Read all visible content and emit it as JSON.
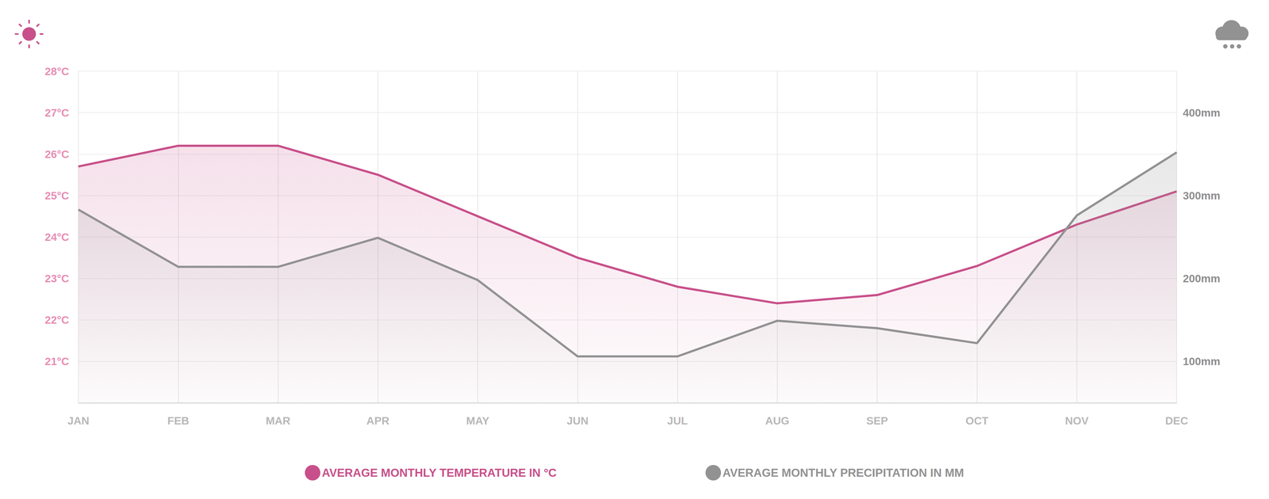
{
  "chart_data": {
    "type": "line",
    "categories": [
      "JAN",
      "FEB",
      "MAR",
      "APR",
      "MAY",
      "JUN",
      "JUL",
      "AUG",
      "SEP",
      "OCT",
      "NOV",
      "DEC"
    ],
    "series": [
      {
        "name": "AVERAGE MONTHLY TEMPERATURE IN °C",
        "color": "#c8508a",
        "values": [
          25.7,
          26.2,
          26.2,
          25.5,
          24.5,
          23.5,
          22.8,
          22.4,
          22.6,
          23.3,
          24.3,
          25.1
        ]
      },
      {
        "name": "AVERAGE MONTHLY PRECIPITATION IN MM",
        "color": "#929292",
        "axis": "y2",
        "values": [
          283,
          214,
          214,
          249,
          198,
          106,
          106,
          149,
          140,
          122,
          276,
          352
        ]
      }
    ],
    "ylim": [
      20,
      28
    ],
    "yticks": [
      {
        "value": 21,
        "label": "21°C"
      },
      {
        "value": 22,
        "label": "22°C"
      },
      {
        "value": 23,
        "label": "23°C"
      },
      {
        "value": 24,
        "label": "24°C"
      },
      {
        "value": 25,
        "label": "25°C"
      },
      {
        "value": 26,
        "label": "26°C"
      },
      {
        "value": 27,
        "label": "27°C"
      },
      {
        "value": 28,
        "label": "28°C"
      }
    ],
    "y2lim": [
      50,
      450
    ],
    "y2ticks": [
      {
        "value": 100,
        "label": "100mm"
      },
      {
        "value": 200,
        "label": "200mm"
      },
      {
        "value": 300,
        "label": "300mm"
      },
      {
        "value": 400,
        "label": "400mm"
      }
    ],
    "grid": true,
    "legend": "bottom"
  }
}
